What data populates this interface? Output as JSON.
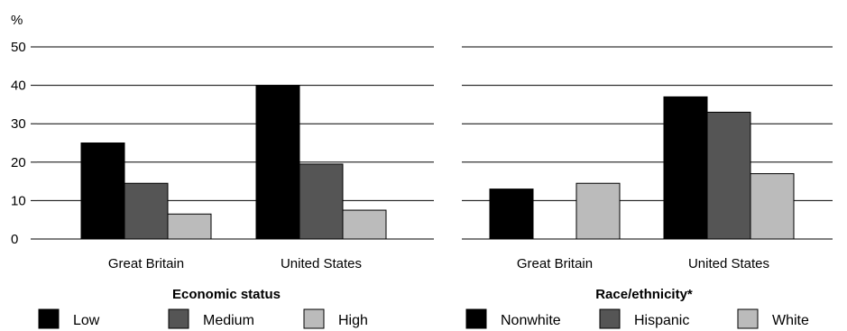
{
  "y_unit": "%",
  "chart_data": [
    {
      "type": "bar",
      "title": "Economic status",
      "categories": [
        "Great Britain",
        "United States"
      ],
      "series": [
        {
          "name": "Low",
          "color": "#000000",
          "values": [
            25,
            40
          ]
        },
        {
          "name": "Medium",
          "color": "#555555",
          "values": [
            14.5,
            19.5
          ]
        },
        {
          "name": "High",
          "color": "#bbbbbb",
          "values": [
            6.5,
            7.5
          ]
        }
      ],
      "ylim": [
        0,
        50
      ],
      "yticks": [
        0,
        10,
        20,
        30,
        40,
        50
      ],
      "ylabel": "%",
      "grid": true,
      "legend_position": "bottom"
    },
    {
      "type": "bar",
      "title": "Race/ethnicity*",
      "categories": [
        "Great Britain",
        "United States"
      ],
      "series": [
        {
          "name": "Nonwhite",
          "color": "#000000",
          "values": [
            13,
            37
          ]
        },
        {
          "name": "Hispanic",
          "color": "#555555",
          "values": [
            null,
            33
          ]
        },
        {
          "name": "White",
          "color": "#bbbbbb",
          "values": [
            14.5,
            17
          ]
        }
      ],
      "ylim": [
        0,
        50
      ],
      "grid": true,
      "legend_position": "bottom"
    }
  ]
}
